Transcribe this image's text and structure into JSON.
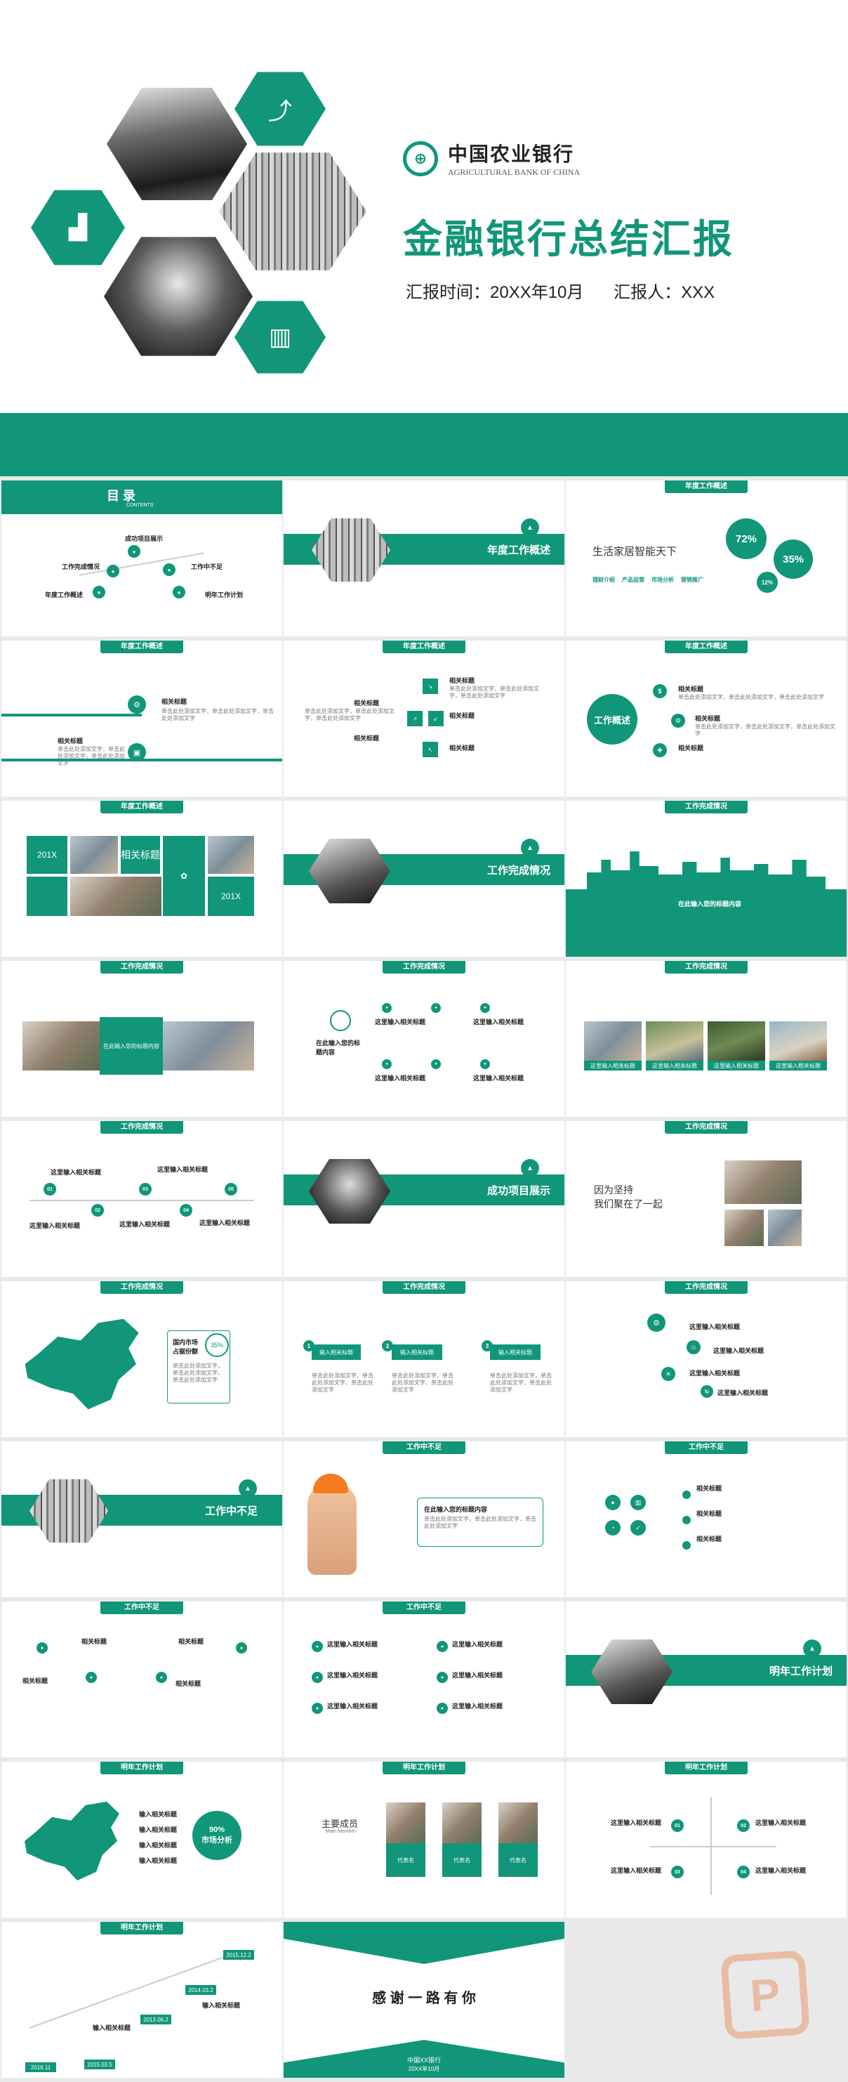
{
  "cover": {
    "bank_cn": "中国农业银行",
    "bank_en": "AGRICULTURAL BANK OF CHINA",
    "title": "金融银行总结汇报",
    "time_label": "汇报时间：20XX年10月",
    "reporter_label": "汇报人：XXX"
  },
  "sections": {
    "toc": "目 录",
    "toc_en": "CONTENTS",
    "annual": "年度工作概述",
    "completion": "工作完成情况",
    "projects": "成功项目展示",
    "shortcomings": "工作中不足",
    "plan": "明年工作计划"
  },
  "toc_items": [
    "成功项目展示",
    "工作完成情况",
    "工作中不足",
    "年度工作概述",
    "明年工作计划"
  ],
  "slogan": "生活家居智能天下",
  "slogan_tags": [
    "理财介绍",
    "产品运营",
    "市场分析",
    "营销推广"
  ],
  "percent_bubbles": [
    "72%",
    "35%",
    "12%"
  ],
  "labels": {
    "related_title": "相关标题",
    "input_title": "在此输入您的标题内容",
    "input_short": "在此输入您的标题内容",
    "please_input": "这里输入相关标题",
    "work_overview": "工作概述",
    "related_title_2": "相关标题",
    "year": "201X",
    "persist": "因为坚持\n我们聚在了一起",
    "market": "90%\n市场分析",
    "domestic": "国内市场占据份额",
    "domestic_pct": "35%",
    "input_related": "输入相关标题",
    "members": "主要成员",
    "members_en": "Main Member",
    "member_name": "代表名",
    "thanks": "感 谢 一 路 有 你",
    "thanks_bank": "中国XX银行",
    "thanks_date": "20XX年10月"
  },
  "timeline_dates": [
    "2015.12.2",
    "2014.03.2",
    "2013.06.2",
    "2016.11",
    "2015.03.5"
  ],
  "body_text": "单击此处添加文字，单击此处添加文字，单击此处添加文字"
}
